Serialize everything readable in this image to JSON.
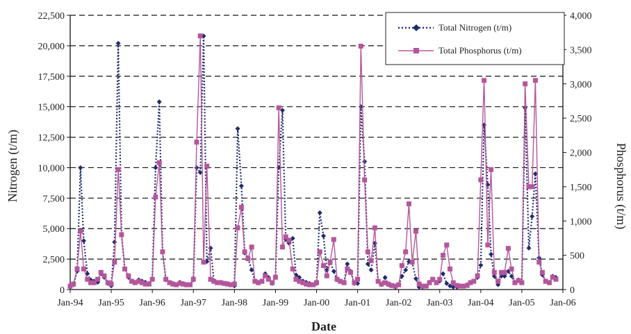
{
  "chart_data": {
    "type": "line",
    "xlabel": "Date",
    "ylabel_left": "Nitrogen (t/m)",
    "ylabel_right": "Phosphorus (t/m)",
    "x_tick_labels": [
      "Jan-94",
      "Jan-95",
      "Jan-96",
      "Jan-97",
      "Jan-98",
      "Jan-99",
      "Jan-00",
      "Jan-01",
      "Jan-02",
      "Jan-03",
      "Jan-04",
      "Jan-05",
      "Jan-06"
    ],
    "y_left_tick_labels": [
      "0",
      "2,500",
      "5,000",
      "7,500",
      "10,000",
      "12,500",
      "15,000",
      "17,500",
      "20,000",
      "22,500"
    ],
    "y_right_tick_labels": [
      "0",
      "500",
      "1,000",
      "1,500",
      "2,000",
      "2,500",
      "3,000",
      "3,500",
      "4,000"
    ],
    "xlim": [
      1994.0,
      2006.0
    ],
    "ylim_left": [
      0,
      22500
    ],
    "ylim_right": [
      0,
      4000
    ],
    "grid": "horizontal dashed",
    "legend_position": "top-right",
    "series": [
      {
        "name": "Total Nitrogen (t/m)",
        "axis": "left",
        "color": "#1f2a6b",
        "style": "dotted-diamond",
        "points": [
          [
            1994.0,
            200
          ],
          [
            1994.08,
            400
          ],
          [
            1994.17,
            1500
          ],
          [
            1994.25,
            10000
          ],
          [
            1994.33,
            4000
          ],
          [
            1994.42,
            1300
          ],
          [
            1994.5,
            800
          ],
          [
            1994.58,
            700
          ],
          [
            1994.67,
            600
          ],
          [
            1994.75,
            1300
          ],
          [
            1994.83,
            1000
          ],
          [
            1994.92,
            500
          ],
          [
            1995.0,
            300
          ],
          [
            1995.08,
            3900
          ],
          [
            1995.17,
            20200
          ],
          [
            1995.25,
            4500
          ],
          [
            1995.33,
            1700
          ],
          [
            1995.42,
            1000
          ],
          [
            1995.5,
            700
          ],
          [
            1995.58,
            600
          ],
          [
            1995.67,
            800
          ],
          [
            1995.75,
            700
          ],
          [
            1995.83,
            600
          ],
          [
            1995.92,
            500
          ],
          [
            1996.0,
            900
          ],
          [
            1996.08,
            10000
          ],
          [
            1996.17,
            15400
          ],
          [
            1996.25,
            3100
          ],
          [
            1996.33,
            800
          ],
          [
            1996.42,
            600
          ],
          [
            1996.5,
            500
          ],
          [
            1996.58,
            400
          ],
          [
            1996.67,
            600
          ],
          [
            1996.75,
            500
          ],
          [
            1996.83,
            400
          ],
          [
            1996.92,
            400
          ],
          [
            1997.0,
            800
          ],
          [
            1997.08,
            10000
          ],
          [
            1997.17,
            9600
          ],
          [
            1997.25,
            20800
          ],
          [
            1997.33,
            2300
          ],
          [
            1997.42,
            3400
          ],
          [
            1997.5,
            700
          ],
          [
            1997.58,
            600
          ],
          [
            1997.67,
            600
          ],
          [
            1997.75,
            500
          ],
          [
            1997.83,
            500
          ],
          [
            1997.92,
            400
          ],
          [
            1998.0,
            300
          ],
          [
            1998.08,
            13200
          ],
          [
            1998.17,
            8500
          ],
          [
            1998.25,
            3000
          ],
          [
            1998.33,
            2600
          ],
          [
            1998.42,
            1600
          ],
          [
            1998.5,
            700
          ],
          [
            1998.58,
            600
          ],
          [
            1998.67,
            700
          ],
          [
            1998.75,
            1300
          ],
          [
            1998.83,
            1000
          ],
          [
            1998.92,
            500
          ],
          [
            1999.0,
            1000
          ],
          [
            1999.08,
            10000
          ],
          [
            1999.17,
            14700
          ],
          [
            1999.25,
            4100
          ],
          [
            1999.33,
            3800
          ],
          [
            1999.42,
            4200
          ],
          [
            1999.5,
            1200
          ],
          [
            1999.58,
            1000
          ],
          [
            1999.67,
            700
          ],
          [
            1999.75,
            600
          ],
          [
            1999.83,
            500
          ],
          [
            1999.92,
            400
          ],
          [
            2000.0,
            500
          ],
          [
            2000.08,
            6300
          ],
          [
            2000.17,
            4400
          ],
          [
            2000.25,
            1600
          ],
          [
            2000.33,
            2300
          ],
          [
            2000.42,
            1500
          ],
          [
            2000.5,
            800
          ],
          [
            2000.58,
            700
          ],
          [
            2000.67,
            600
          ],
          [
            2000.75,
            2100
          ],
          [
            2000.83,
            1500
          ],
          [
            2000.92,
            500
          ],
          [
            2001.0,
            500
          ],
          [
            2001.08,
            15000
          ],
          [
            2001.17,
            10500
          ],
          [
            2001.25,
            2100
          ],
          [
            2001.33,
            1600
          ],
          [
            2001.42,
            3800
          ],
          [
            2001.5,
            700
          ],
          [
            2001.58,
            400
          ],
          [
            2001.67,
            1000
          ],
          [
            2001.75,
            400
          ],
          [
            2001.83,
            300
          ],
          [
            2001.92,
            200
          ],
          [
            2002.0,
            400
          ],
          [
            2002.08,
            1100
          ],
          [
            2002.17,
            1600
          ],
          [
            2002.25,
            2300
          ],
          [
            2002.33,
            2200
          ],
          [
            2002.42,
            900
          ],
          [
            2002.5,
            200
          ],
          [
            2002.58,
            200
          ],
          [
            2002.67,
            300
          ],
          [
            2002.75,
            600
          ],
          [
            2002.83,
            800
          ],
          [
            2002.92,
            600
          ],
          [
            2003.0,
            700
          ],
          [
            2003.08,
            1300
          ],
          [
            2003.17,
            500
          ],
          [
            2003.25,
            300
          ],
          [
            2003.33,
            200
          ],
          [
            2003.42,
            200
          ],
          [
            2003.5,
            300
          ],
          [
            2003.58,
            300
          ],
          [
            2003.67,
            400
          ],
          [
            2003.75,
            600
          ],
          [
            2003.83,
            700
          ],
          [
            2003.92,
            1000
          ],
          [
            2004.0,
            2000
          ],
          [
            2004.08,
            13500
          ],
          [
            2004.17,
            8600
          ],
          [
            2004.25,
            2900
          ],
          [
            2004.33,
            1100
          ],
          [
            2004.42,
            400
          ],
          [
            2004.5,
            1100
          ],
          [
            2004.58,
            1100
          ],
          [
            2004.67,
            1500
          ],
          [
            2004.75,
            1100
          ],
          [
            2004.83,
            600
          ],
          [
            2004.92,
            800
          ],
          [
            2005.0,
            600
          ],
          [
            2005.08,
            14900
          ],
          [
            2005.17,
            3400
          ],
          [
            2005.25,
            6000
          ],
          [
            2005.33,
            9500
          ],
          [
            2005.42,
            2600
          ],
          [
            2005.5,
            1200
          ],
          [
            2005.58,
            700
          ],
          [
            2005.67,
            600
          ],
          [
            2005.75,
            1100
          ],
          [
            2005.83,
            1000
          ]
        ]
      },
      {
        "name": "Total Phosphorus (t/m)",
        "axis": "right",
        "color": "#b4569c",
        "style": "solid-square",
        "points": [
          [
            1994.0,
            50
          ],
          [
            1994.08,
            80
          ],
          [
            1994.17,
            300
          ],
          [
            1994.25,
            850
          ],
          [
            1994.33,
            300
          ],
          [
            1994.42,
            150
          ],
          [
            1994.5,
            100
          ],
          [
            1994.58,
            100
          ],
          [
            1994.67,
            150
          ],
          [
            1994.75,
            250
          ],
          [
            1994.83,
            200
          ],
          [
            1994.92,
            100
          ],
          [
            1995.0,
            80
          ],
          [
            1995.08,
            400
          ],
          [
            1995.17,
            1750
          ],
          [
            1995.25,
            800
          ],
          [
            1995.33,
            300
          ],
          [
            1995.42,
            200
          ],
          [
            1995.5,
            120
          ],
          [
            1995.58,
            100
          ],
          [
            1995.67,
            120
          ],
          [
            1995.75,
            100
          ],
          [
            1995.83,
            80
          ],
          [
            1995.92,
            80
          ],
          [
            1996.0,
            150
          ],
          [
            1996.08,
            1350
          ],
          [
            1996.17,
            1850
          ],
          [
            1996.25,
            550
          ],
          [
            1996.33,
            150
          ],
          [
            1996.42,
            100
          ],
          [
            1996.5,
            80
          ],
          [
            1996.58,
            70
          ],
          [
            1996.67,
            90
          ],
          [
            1996.75,
            80
          ],
          [
            1996.83,
            70
          ],
          [
            1996.92,
            70
          ],
          [
            1997.0,
            150
          ],
          [
            1997.08,
            2150
          ],
          [
            1997.17,
            3700
          ],
          [
            1997.25,
            400
          ],
          [
            1997.33,
            1800
          ],
          [
            1997.42,
            150
          ],
          [
            1997.5,
            120
          ],
          [
            1997.58,
            100
          ],
          [
            1997.67,
            100
          ],
          [
            1997.75,
            90
          ],
          [
            1997.83,
            80
          ],
          [
            1997.92,
            70
          ],
          [
            1998.0,
            80
          ],
          [
            1998.08,
            900
          ],
          [
            1998.17,
            1200
          ],
          [
            1998.25,
            550
          ],
          [
            1998.33,
            450
          ],
          [
            1998.42,
            620
          ],
          [
            1998.5,
            120
          ],
          [
            1998.58,
            100
          ],
          [
            1998.67,
            120
          ],
          [
            1998.75,
            200
          ],
          [
            1998.83,
            150
          ],
          [
            1998.92,
            100
          ],
          [
            1999.0,
            180
          ],
          [
            1999.08,
            2650
          ],
          [
            1999.17,
            620
          ],
          [
            1999.25,
            770
          ],
          [
            1999.33,
            720
          ],
          [
            1999.42,
            300
          ],
          [
            1999.5,
            150
          ],
          [
            1999.58,
            120
          ],
          [
            1999.67,
            100
          ],
          [
            1999.75,
            80
          ],
          [
            1999.83,
            70
          ],
          [
            1999.92,
            70
          ],
          [
            2000.0,
            100
          ],
          [
            2000.08,
            550
          ],
          [
            2000.17,
            350
          ],
          [
            2000.25,
            200
          ],
          [
            2000.33,
            400
          ],
          [
            2000.42,
            730
          ],
          [
            2000.5,
            150
          ],
          [
            2000.58,
            120
          ],
          [
            2000.67,
            100
          ],
          [
            2000.75,
            300
          ],
          [
            2000.83,
            250
          ],
          [
            2000.92,
            100
          ],
          [
            2001.0,
            150
          ],
          [
            2001.08,
            3550
          ],
          [
            2001.17,
            1600
          ],
          [
            2001.25,
            550
          ],
          [
            2001.33,
            420
          ],
          [
            2001.42,
            900
          ],
          [
            2001.5,
            120
          ],
          [
            2001.58,
            80
          ],
          [
            2001.67,
            100
          ],
          [
            2001.75,
            80
          ],
          [
            2001.83,
            60
          ],
          [
            2001.92,
            50
          ],
          [
            2002.0,
            70
          ],
          [
            2002.08,
            350
          ],
          [
            2002.17,
            550
          ],
          [
            2002.25,
            1250
          ],
          [
            2002.33,
            400
          ],
          [
            2002.42,
            850
          ],
          [
            2002.5,
            80
          ],
          [
            2002.58,
            50
          ],
          [
            2002.67,
            50
          ],
          [
            2002.75,
            100
          ],
          [
            2002.83,
            150
          ],
          [
            2002.92,
            100
          ],
          [
            2003.0,
            150
          ],
          [
            2003.08,
            500
          ],
          [
            2003.17,
            650
          ],
          [
            2003.25,
            300
          ],
          [
            2003.33,
            100
          ],
          [
            2003.42,
            60
          ],
          [
            2003.5,
            50
          ],
          [
            2003.58,
            50
          ],
          [
            2003.67,
            60
          ],
          [
            2003.75,
            100
          ],
          [
            2003.83,
            120
          ],
          [
            2003.92,
            200
          ],
          [
            2004.0,
            1600
          ],
          [
            2004.08,
            3050
          ],
          [
            2004.17,
            650
          ],
          [
            2004.25,
            1750
          ],
          [
            2004.33,
            250
          ],
          [
            2004.42,
            120
          ],
          [
            2004.5,
            250
          ],
          [
            2004.58,
            250
          ],
          [
            2004.67,
            600
          ],
          [
            2004.75,
            300
          ],
          [
            2004.83,
            100
          ],
          [
            2004.92,
            130
          ],
          [
            2005.0,
            100
          ],
          [
            2005.08,
            3000
          ],
          [
            2005.17,
            1500
          ],
          [
            2005.25,
            1500
          ],
          [
            2005.33,
            3050
          ],
          [
            2005.42,
            400
          ],
          [
            2005.5,
            250
          ],
          [
            2005.58,
            120
          ],
          [
            2005.67,
            100
          ],
          [
            2005.75,
            180
          ],
          [
            2005.83,
            150
          ]
        ]
      }
    ]
  }
}
